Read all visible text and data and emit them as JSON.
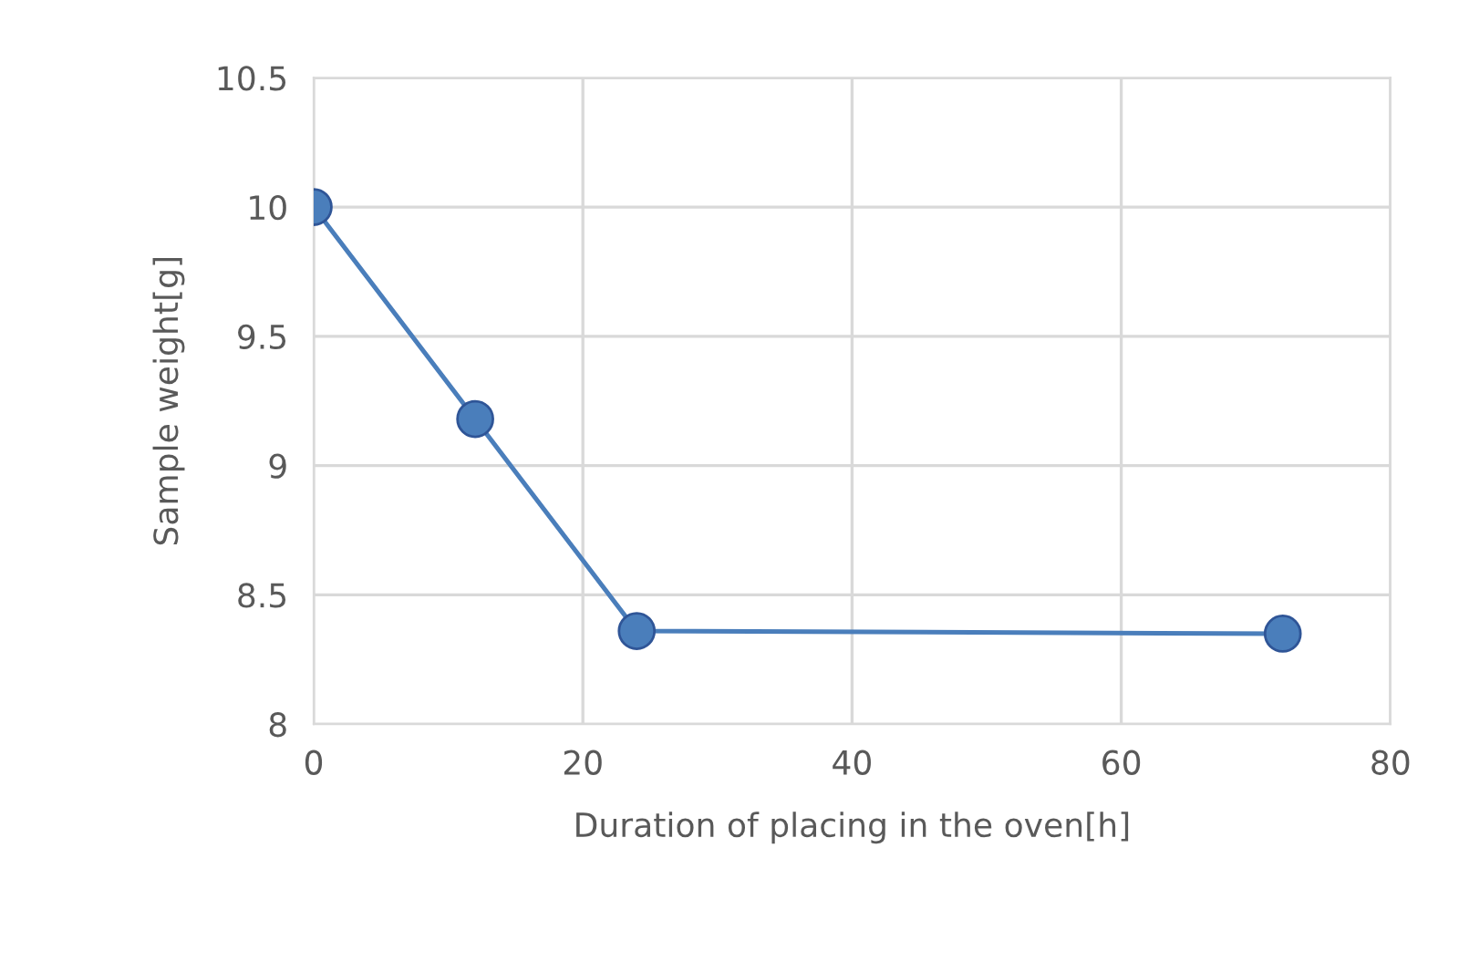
{
  "chart_data": {
    "type": "line",
    "xlabel": "Duration of placing in the oven[h]",
    "ylabel": "Sample weight[g]",
    "x": [
      0,
      12,
      24,
      72
    ],
    "series": [
      {
        "color": "#4a7ebb",
        "values": [
          10,
          9.18,
          8.36,
          8.35
        ]
      }
    ],
    "xlim": [
      0,
      80
    ],
    "xticks": [
      0,
      20,
      40,
      60,
      80
    ],
    "ylim": [
      8,
      10.5
    ],
    "yticks": [
      8,
      8.5,
      9,
      9.5,
      10,
      10.5
    ],
    "grid": true,
    "marker": "circle",
    "line_style": "solid",
    "legend": false
  }
}
